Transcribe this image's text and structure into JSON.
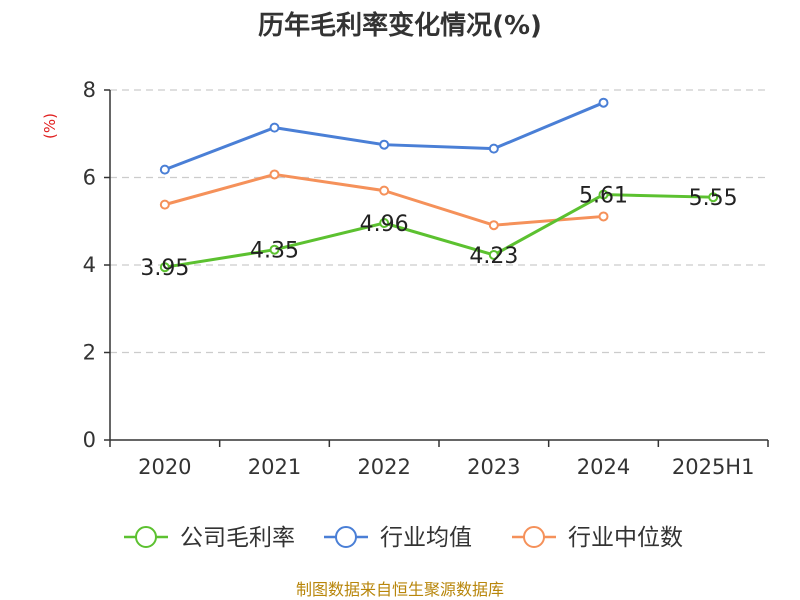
{
  "chart_data": {
    "type": "line",
    "title": "历年毛利率变化情况(%)",
    "ylabel": "(%)",
    "xlabel": "",
    "categories": [
      "2020",
      "2021",
      "2022",
      "2023",
      "2024",
      "2025H1"
    ],
    "yticks": [
      "0",
      "2",
      "4",
      "6",
      "8"
    ],
    "ylim": [
      0,
      8
    ],
    "grid": true,
    "legend_position": "bottom",
    "series": [
      {
        "name": "公司毛利率",
        "color": "#5cc130",
        "values": [
          3.95,
          4.35,
          4.96,
          4.23,
          5.61,
          5.55
        ],
        "labels": [
          "3.95",
          "4.35",
          "4.96",
          "4.23",
          "5.61",
          "5.55"
        ]
      },
      {
        "name": "行业均值",
        "color": "#4a7fd6",
        "values": [
          6.18,
          7.14,
          6.75,
          6.66,
          7.71,
          null
        ],
        "labels": []
      },
      {
        "name": "行业中位数",
        "color": "#f5915a",
        "values": [
          5.38,
          6.07,
          5.7,
          4.91,
          5.11,
          null
        ],
        "labels": []
      }
    ],
    "source": "制图数据来自恒生聚源数据库",
    "ylabel_color": "#e02020",
    "source_color": "#b8860b",
    "axis_color": "#333333",
    "grid_color": "#cccccc"
  }
}
